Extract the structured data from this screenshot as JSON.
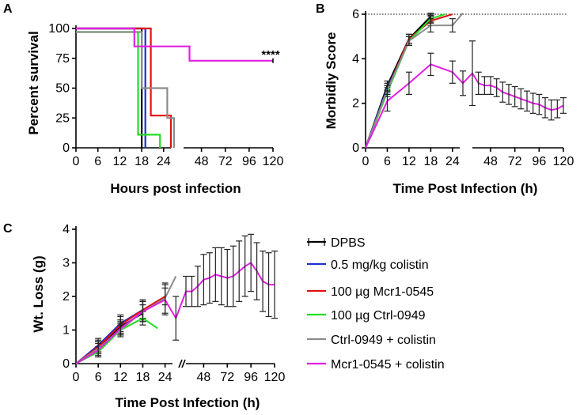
{
  "chart_data": [
    {
      "panel": "A",
      "type": "line",
      "subtype": "kaplan-meier",
      "title": "",
      "xlabel": "Hours post infection",
      "ylabel": "Percent survival",
      "ylim": [
        0,
        100
      ],
      "yticks": [
        "0",
        "25",
        "50",
        "75",
        "100"
      ],
      "xticks_left": [
        "0",
        "6",
        "12",
        "18",
        "24"
      ],
      "xticks_right": [
        "48",
        "72",
        "96",
        "120"
      ],
      "annotation": "****",
      "series": [
        {
          "name": "DPBS",
          "color": "#000000",
          "steps": [
            [
              0,
              100
            ],
            [
              18,
              100
            ],
            [
              18,
              0
            ]
          ]
        },
        {
          "name": "0.5 mg/kg colistin",
          "color": "#1f2fd0",
          "steps": [
            [
              0,
              100
            ],
            [
              19,
              100
            ],
            [
              19,
              0
            ]
          ]
        },
        {
          "name": "100 µg Mcr1-0545",
          "color": "#e01010",
          "steps": [
            [
              0,
              100
            ],
            [
              20.5,
              100
            ],
            [
              20.5,
              27
            ],
            [
              26,
              27
            ],
            [
              26,
              0
            ]
          ]
        },
        {
          "name": "100 µg Ctrl-0949",
          "color": "#22dd22",
          "steps": [
            [
              0,
              97
            ],
            [
              17,
              97
            ],
            [
              17,
              11
            ],
            [
              23,
              11
            ],
            [
              23,
              0
            ]
          ]
        },
        {
          "name": "Ctrl-0949 + colistin",
          "color": "#8c8c8c",
          "steps": [
            [
              0,
              97
            ],
            [
              18,
              97
            ],
            [
              18,
              50
            ],
            [
              25,
              50
            ],
            [
              25,
              25
            ],
            [
              27,
              25
            ],
            [
              27,
              0
            ]
          ]
        },
        {
          "name": "Mcr1-0545 + colistin",
          "color": "#e020e0",
          "steps": [
            [
              0,
              100
            ],
            [
              16,
              100
            ],
            [
              16,
              85
            ],
            [
              24,
              85
            ],
            [
              24,
              85
            ],
            [
              36,
              85
            ],
            [
              36,
              73
            ],
            [
              120,
              73
            ]
          ]
        }
      ]
    },
    {
      "panel": "B",
      "type": "line",
      "title": "",
      "xlabel": "Time Post Infection (h)",
      "ylabel": "Morbidiy Score",
      "ylim": [
        0,
        6
      ],
      "yticks": [
        "0",
        "2",
        "4",
        "6"
      ],
      "xticks_left": [
        "0",
        "6",
        "12",
        "18",
        "24"
      ],
      "xticks_right": [
        "48",
        "72",
        "96",
        "120"
      ],
      "reference_line": 6,
      "series": [
        {
          "name": "DPBS",
          "color": "#000000",
          "x": [
            0,
            6,
            12,
            18
          ],
          "y": [
            0,
            2.8,
            4.9,
            5.9
          ],
          "err": [
            0,
            0.2,
            0.2,
            0.15
          ]
        },
        {
          "name": "0.5 mg/kg colistin",
          "color": "#1f2fd0",
          "x": [
            0,
            6,
            12,
            18
          ],
          "y": [
            0,
            2.7,
            4.8,
            5.8
          ],
          "err": [
            0,
            0.2,
            0.2,
            0.15
          ]
        },
        {
          "name": "100 µg Mcr1-0545",
          "color": "#e01010",
          "x": [
            0,
            6,
            12,
            18,
            24
          ],
          "y": [
            0,
            2.6,
            4.9,
            5.7,
            6
          ],
          "err": [
            0,
            0.2,
            0.2,
            0.2,
            0
          ]
        },
        {
          "name": "100 µg Ctrl-0949",
          "color": "#22dd22",
          "x": [
            0,
            6,
            12,
            18,
            22
          ],
          "y": [
            0,
            2.5,
            4.8,
            5.8,
            6
          ],
          "err": [
            0,
            0.2,
            0.2,
            0.2,
            0
          ]
        },
        {
          "name": "Ctrl-0949 + colistin",
          "color": "#8c8c8c",
          "x": [
            0,
            6,
            12,
            18,
            24,
            27
          ],
          "y": [
            0,
            2.6,
            4.8,
            5.5,
            5.5,
            6.05
          ],
          "err": [
            0,
            0.2,
            0.2,
            0.3,
            0.3,
            0
          ]
        },
        {
          "name": "Mcr1-0545 + colistin",
          "color": "#e020e0",
          "x": [
            0,
            6,
            12,
            18,
            24,
            27,
            30,
            36,
            42,
            48,
            54,
            60,
            66,
            72,
            78,
            84,
            90,
            96,
            102,
            108,
            114,
            120
          ],
          "y": [
            0,
            2.1,
            2.9,
            3.75,
            3.4,
            2.9,
            3.35,
            2.9,
            2.8,
            2.8,
            2.7,
            2.5,
            2.4,
            2.3,
            2.2,
            2.1,
            2.0,
            1.95,
            1.8,
            1.7,
            1.75,
            1.9
          ],
          "err": [
            0,
            0.45,
            0.5,
            0.5,
            0.5,
            0.55,
            1.45,
            0.5,
            0.4,
            0.4,
            0.4,
            0.45,
            0.45,
            0.45,
            0.45,
            0.45,
            0.45,
            0.45,
            0.45,
            0.45,
            0.4,
            0.35
          ]
        }
      ]
    },
    {
      "panel": "C",
      "type": "line",
      "title": "",
      "xlabel": "Time Post Infection (h)",
      "ylabel": "Wt. Loss (g)",
      "ylim": [
        0,
        4
      ],
      "yticks": [
        "0",
        "1",
        "2",
        "3",
        "4"
      ],
      "xticks_left": [
        "0",
        "6",
        "12",
        "18",
        "24"
      ],
      "xticks_right": [
        "48",
        "72",
        "96",
        "120"
      ],
      "series": [
        {
          "name": "DPBS",
          "color": "#000000",
          "x": [
            0,
            6,
            12,
            18
          ],
          "y": [
            0,
            0.5,
            1.1,
            1.5
          ],
          "err": [
            0,
            0.15,
            0.2,
            0.25
          ]
        },
        {
          "name": "0.5 mg/kg colistin",
          "color": "#1f2fd0",
          "x": [
            0,
            6,
            12,
            18
          ],
          "y": [
            0,
            0.55,
            1.2,
            1.6
          ],
          "err": [
            0,
            0.2,
            0.25,
            0.25
          ]
        },
        {
          "name": "100 µg Mcr1-0545",
          "color": "#e01010",
          "x": [
            0,
            6,
            12,
            18,
            24
          ],
          "y": [
            0,
            0.5,
            1.15,
            1.6,
            2.0
          ],
          "err": [
            0,
            0.2,
            0.25,
            0.3,
            0.25
          ]
        },
        {
          "name": "100 µg Ctrl-0949",
          "color": "#22dd22",
          "x": [
            0,
            6,
            12,
            18,
            22
          ],
          "y": [
            0,
            0.35,
            1.0,
            1.35,
            1.05
          ],
          "err": [
            0,
            0.15,
            0.15,
            0.2,
            0
          ]
        },
        {
          "name": "Ctrl-0949 + colistin",
          "color": "#8c8c8c",
          "x": [
            0,
            6,
            12,
            18,
            24,
            27
          ],
          "y": [
            0,
            0.45,
            1.0,
            1.55,
            1.95,
            2.6
          ],
          "err": [
            0,
            0.2,
            0.2,
            0.3,
            0.45,
            0
          ]
        },
        {
          "name": "Mcr1-0545 + colistin",
          "color": "#e020e0",
          "x": [
            0,
            6,
            12,
            18,
            24,
            27,
            30,
            36,
            42,
            48,
            54,
            60,
            66,
            72,
            78,
            84,
            90,
            96,
            102,
            108,
            114,
            120
          ],
          "y": [
            0,
            0.4,
            1.05,
            1.55,
            1.9,
            1.35,
            2.15,
            2.15,
            2.3,
            2.5,
            2.55,
            2.65,
            2.6,
            2.55,
            2.6,
            2.75,
            2.9,
            3.0,
            2.75,
            2.45,
            2.35,
            2.35
          ],
          "err": [
            0,
            0.2,
            0.2,
            0.3,
            0.45,
            0.65,
            0.45,
            0.45,
            0.6,
            0.75,
            0.75,
            0.8,
            0.85,
            0.85,
            0.9,
            0.9,
            0.9,
            0.85,
            0.85,
            0.9,
            0.95,
            1.0
          ]
        }
      ]
    }
  ],
  "panels": {
    "a": {
      "letter": "A",
      "xlabel": "Hours post infection",
      "ylabel": "Percent survival",
      "annotation": "****"
    },
    "b": {
      "letter": "B",
      "xlabel": "Time Post Infection (h)",
      "ylabel": "Morbidiy Score"
    },
    "c": {
      "letter": "C",
      "xlabel": "Time Post Infection (h)",
      "ylabel": "Wt. Loss (g)"
    }
  },
  "legend": [
    {
      "name": "DPBS",
      "color": "#000000"
    },
    {
      "name": "0.5 mg/kg colistin",
      "color": "#1f2fd0"
    },
    {
      "name": "100 µg Mcr1-0545",
      "color": "#e01010"
    },
    {
      "name": "100 µg Ctrl-0949",
      "color": "#22dd22"
    },
    {
      "name": "Ctrl-0949 + colistin",
      "color": "#8c8c8c"
    },
    {
      "name": "Mcr1-0545 + colistin",
      "color": "#e020e0"
    }
  ]
}
